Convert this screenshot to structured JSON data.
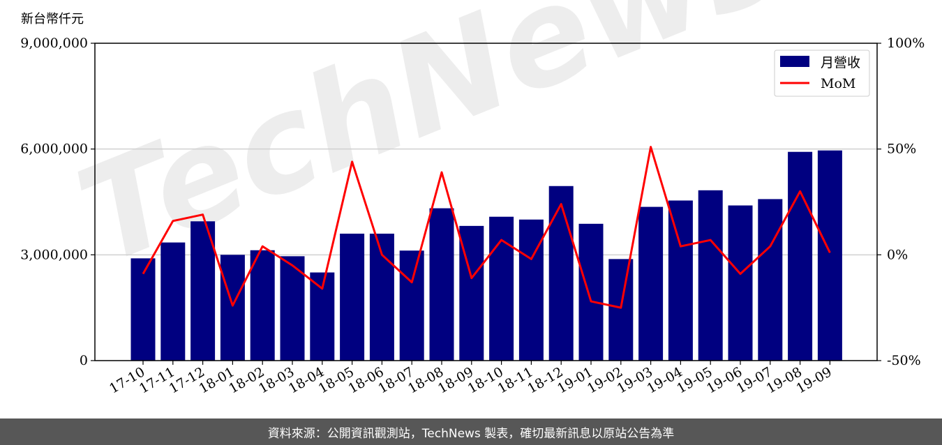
{
  "chart_data": {
    "type": "bar+line",
    "y_unit_label": "新台幣仟元",
    "categories": [
      "17-10",
      "17-11",
      "17-12",
      "18-01",
      "18-02",
      "18-03",
      "18-04",
      "18-05",
      "18-06",
      "18-07",
      "18-08",
      "18-09",
      "18-10",
      "18-11",
      "18-12",
      "19-01",
      "19-02",
      "19-03",
      "19-04",
      "19-05",
      "19-06",
      "19-07",
      "19-08",
      "19-09"
    ],
    "series": [
      {
        "name": "月營收",
        "type": "bar",
        "axis": "left",
        "color": "#000080",
        "values": [
          2900000,
          3350000,
          3950000,
          3000000,
          3130000,
          2960000,
          2500000,
          3600000,
          3600000,
          3120000,
          4320000,
          3820000,
          4080000,
          4000000,
          4950000,
          3880000,
          2880000,
          4360000,
          4540000,
          4830000,
          4400000,
          4580000,
          5920000,
          5960000
        ]
      },
      {
        "name": "MoM",
        "type": "line",
        "axis": "right",
        "unit": "%",
        "color": "#ff0000",
        "values": [
          -9,
          16,
          19,
          -24,
          4,
          -5,
          -16,
          44,
          0,
          -13,
          39,
          -11,
          7,
          -2,
          24,
          -22,
          -25,
          51,
          4,
          7,
          -9,
          4,
          30,
          1
        ]
      }
    ],
    "y_left": {
      "range": [
        0,
        9000000
      ],
      "ticks": [
        0,
        3000000,
        6000000,
        9000000
      ],
      "tick_labels": [
        "0",
        "3,000,000",
        "6,000,000",
        "9,000,000"
      ]
    },
    "y_right": {
      "range": [
        -50,
        100
      ],
      "ticks": [
        -50,
        0,
        50,
        100
      ],
      "tick_labels": [
        "-50%",
        "0%",
        "50%",
        "100%"
      ]
    },
    "grid": "horizontal",
    "legend_position": "top-right",
    "watermark": "TechNews",
    "colors": {
      "bar": "#000080",
      "line": "#ff0000",
      "grid": "#d0d0d0",
      "footer_bg": "#575757"
    }
  },
  "footer": {
    "text": "資料來源：公開資訊觀測站，TechNews 製表，確切最新訊息以原站公告為準"
  }
}
